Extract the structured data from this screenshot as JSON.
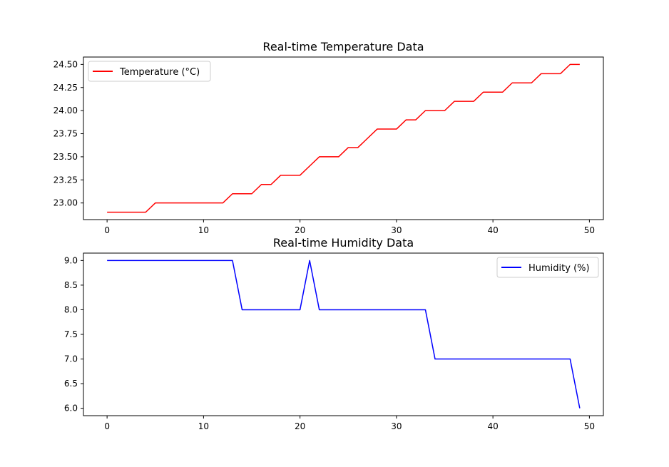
{
  "chart_data": [
    {
      "type": "line",
      "title": "Real-time Temperature Data",
      "xlabel": "",
      "ylabel": "",
      "xlim": [
        -2.45,
        51.45
      ],
      "ylim": [
        22.82,
        24.58
      ],
      "xticks": [
        0,
        10,
        20,
        30,
        40,
        50
      ],
      "yticks": [
        23.0,
        23.25,
        23.5,
        23.75,
        24.0,
        24.25,
        24.5
      ],
      "ytick_labels": [
        "23.00",
        "23.25",
        "23.50",
        "23.75",
        "24.00",
        "24.25",
        "24.50"
      ],
      "grid": false,
      "legend_position": "top-left",
      "series": [
        {
          "name": "Temperature (°C)",
          "color": "#ff0000",
          "x": [
            0,
            1,
            2,
            3,
            4,
            5,
            6,
            7,
            8,
            9,
            10,
            11,
            12,
            13,
            14,
            15,
            16,
            17,
            18,
            19,
            20,
            21,
            22,
            23,
            24,
            25,
            26,
            27,
            28,
            29,
            30,
            31,
            32,
            33,
            34,
            35,
            36,
            37,
            38,
            39,
            40,
            41,
            42,
            43,
            44,
            45,
            46,
            47,
            48,
            49
          ],
          "values": [
            22.9,
            22.9,
            22.9,
            22.9,
            22.9,
            23.0,
            23.0,
            23.0,
            23.0,
            23.0,
            23.0,
            23.0,
            23.0,
            23.1,
            23.1,
            23.1,
            23.2,
            23.2,
            23.3,
            23.3,
            23.3,
            23.4,
            23.5,
            23.5,
            23.5,
            23.6,
            23.6,
            23.7,
            23.8,
            23.8,
            23.8,
            23.9,
            23.9,
            24.0,
            24.0,
            24.0,
            24.1,
            24.1,
            24.1,
            24.2,
            24.2,
            24.2,
            24.3,
            24.3,
            24.3,
            24.4,
            24.4,
            24.4,
            24.5,
            24.5
          ]
        }
      ]
    },
    {
      "type": "line",
      "title": "Real-time Humidity Data",
      "xlabel": "",
      "ylabel": "",
      "xlim": [
        -2.45,
        51.45
      ],
      "ylim": [
        5.85,
        9.15
      ],
      "xticks": [
        0,
        10,
        20,
        30,
        40,
        50
      ],
      "yticks": [
        6.0,
        6.5,
        7.0,
        7.5,
        8.0,
        8.5,
        9.0
      ],
      "ytick_labels": [
        "6.0",
        "6.5",
        "7.0",
        "7.5",
        "8.0",
        "8.5",
        "9.0"
      ],
      "grid": false,
      "legend_position": "top-right",
      "series": [
        {
          "name": "Humidity (%)",
          "color": "#0000ff",
          "x": [
            0,
            1,
            2,
            3,
            4,
            5,
            6,
            7,
            8,
            9,
            10,
            11,
            12,
            13,
            14,
            15,
            16,
            17,
            18,
            19,
            20,
            21,
            22,
            23,
            24,
            25,
            26,
            27,
            28,
            29,
            30,
            31,
            32,
            33,
            34,
            35,
            36,
            37,
            38,
            39,
            40,
            41,
            42,
            43,
            44,
            45,
            46,
            47,
            48,
            49
          ],
          "values": [
            9,
            9,
            9,
            9,
            9,
            9,
            9,
            9,
            9,
            9,
            9,
            9,
            9,
            9,
            8,
            8,
            8,
            8,
            8,
            8,
            8,
            9,
            8,
            8,
            8,
            8,
            8,
            8,
            8,
            8,
            8,
            8,
            8,
            8,
            7,
            7,
            7,
            7,
            7,
            7,
            7,
            7,
            7,
            7,
            7,
            7,
            7,
            7,
            7,
            6
          ]
        }
      ]
    }
  ]
}
